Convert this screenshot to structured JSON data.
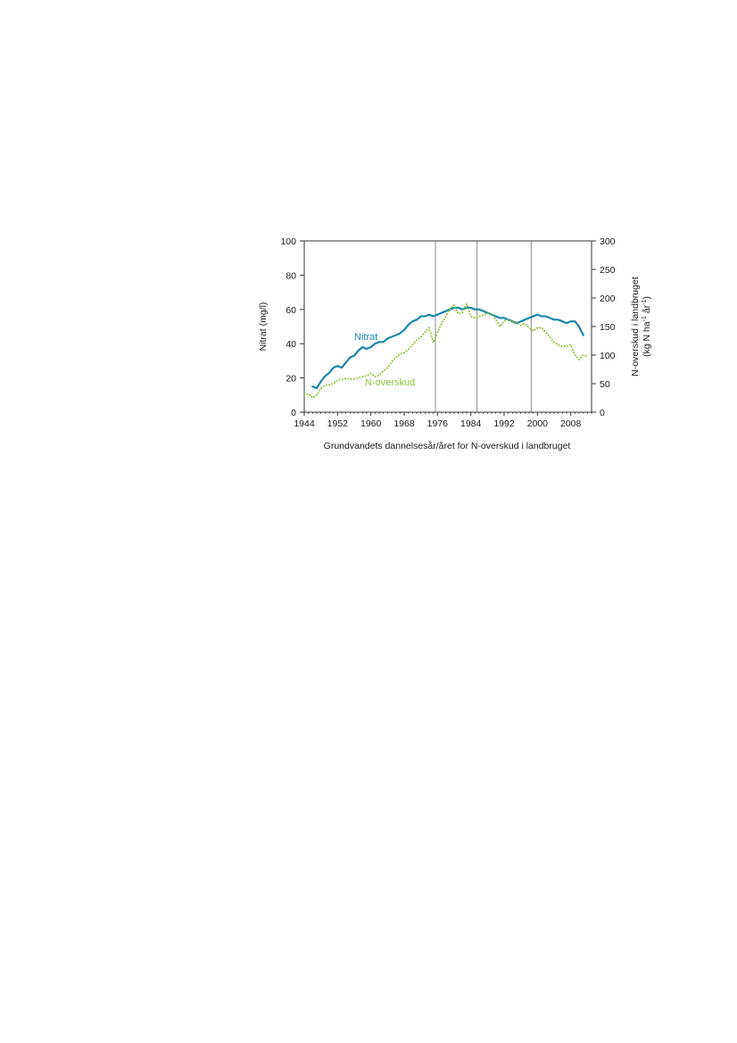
{
  "chart_data": {
    "type": "line",
    "xlabel": "Grundvandets dannelsesår/året for N-overskud i landbruget",
    "ylabel_left": "Nitrat (mg/l)",
    "ylabel_right_line1": "N-overskud i landbruget",
    "ylabel_right_line2_parts": [
      "(kg N ha",
      "-1",
      " år",
      "-1",
      ")"
    ],
    "xlim": [
      1944,
      2013
    ],
    "x_ticks": [
      "1944",
      "1952",
      "1960",
      "1968",
      "1976",
      "1984",
      "1992",
      "2000",
      "2008"
    ],
    "ylim_left": [
      0,
      100
    ],
    "y_ticks_left": [
      "0",
      "20",
      "40",
      "60",
      "80",
      "100"
    ],
    "ylim_right": [
      0,
      300
    ],
    "y_ticks_right": [
      "0",
      "50",
      "100",
      "150",
      "200",
      "250",
      "300"
    ],
    "reference_lines_x": [
      1975.5,
      1985.5,
      1998.5
    ],
    "series": [
      {
        "name": "Nitrat",
        "axis": "left",
        "color": "#1a86b0",
        "style": "solid",
        "x": [
          1946,
          1947,
          1948,
          1949,
          1950,
          1951,
          1952,
          1953,
          1954,
          1955,
          1956,
          1957,
          1958,
          1959,
          1960,
          1961,
          1962,
          1963,
          1964,
          1965,
          1966,
          1967,
          1968,
          1969,
          1970,
          1971,
          1972,
          1973,
          1974,
          1975,
          1976,
          1977,
          1978,
          1979,
          1980,
          1981,
          1982,
          1983,
          1984,
          1985,
          1986,
          1987,
          1988,
          1989,
          1990,
          1991,
          1992,
          1993,
          1994,
          1995,
          1996,
          1997,
          1998,
          1999,
          2000,
          2001,
          2002,
          2003,
          2004,
          2005,
          2006,
          2007,
          2008,
          2009,
          2010,
          2011
        ],
        "values": [
          15,
          14,
          18,
          21,
          23,
          26,
          27,
          26,
          29,
          32,
          33,
          36,
          38,
          37,
          38,
          40,
          41,
          41,
          43,
          44,
          45,
          46,
          48,
          51,
          53,
          54,
          56,
          56,
          57,
          56,
          57,
          58,
          59,
          60,
          61,
          61,
          60,
          61,
          61,
          60,
          60,
          59,
          58,
          57,
          56,
          55,
          55,
          54,
          53,
          52,
          53,
          54,
          55,
          56,
          57,
          56,
          56,
          55,
          54,
          54,
          53,
          52,
          53,
          53,
          50,
          45
        ]
      },
      {
        "name": "N-overskud",
        "axis": "right",
        "color": "#8cc43c",
        "style": "dotted",
        "x": [
          1944,
          1945,
          1946,
          1947,
          1948,
          1949,
          1950,
          1951,
          1952,
          1953,
          1954,
          1955,
          1956,
          1957,
          1958,
          1959,
          1960,
          1961,
          1962,
          1963,
          1964,
          1965,
          1966,
          1967,
          1968,
          1969,
          1970,
          1971,
          1972,
          1973,
          1974,
          1975,
          1976,
          1977,
          1978,
          1979,
          1980,
          1981,
          1982,
          1983,
          1984,
          1985,
          1986,
          1987,
          1988,
          1989,
          1990,
          1991,
          1992,
          1993,
          1994,
          1995,
          1996,
          1997,
          1998,
          1999,
          2000,
          2001,
          2002,
          2003,
          2004,
          2005,
          2006,
          2007,
          2008,
          2009,
          2010,
          2011,
          2012
        ],
        "values": [
          30,
          32,
          25,
          30,
          42,
          47,
          48,
          50,
          56,
          58,
          59,
          58,
          58,
          60,
          62,
          64,
          68,
          62,
          65,
          72,
          78,
          88,
          96,
          102,
          104,
          110,
          118,
          126,
          132,
          140,
          148,
          122,
          140,
          155,
          168,
          182,
          188,
          172,
          175,
          190,
          168,
          165,
          168,
          170,
          173,
          172,
          162,
          150,
          160,
          162,
          158,
          158,
          152,
          155,
          148,
          142,
          148,
          148,
          140,
          132,
          122,
          118,
          115,
          116,
          118,
          100,
          92,
          100,
          98
        ]
      }
    ]
  }
}
